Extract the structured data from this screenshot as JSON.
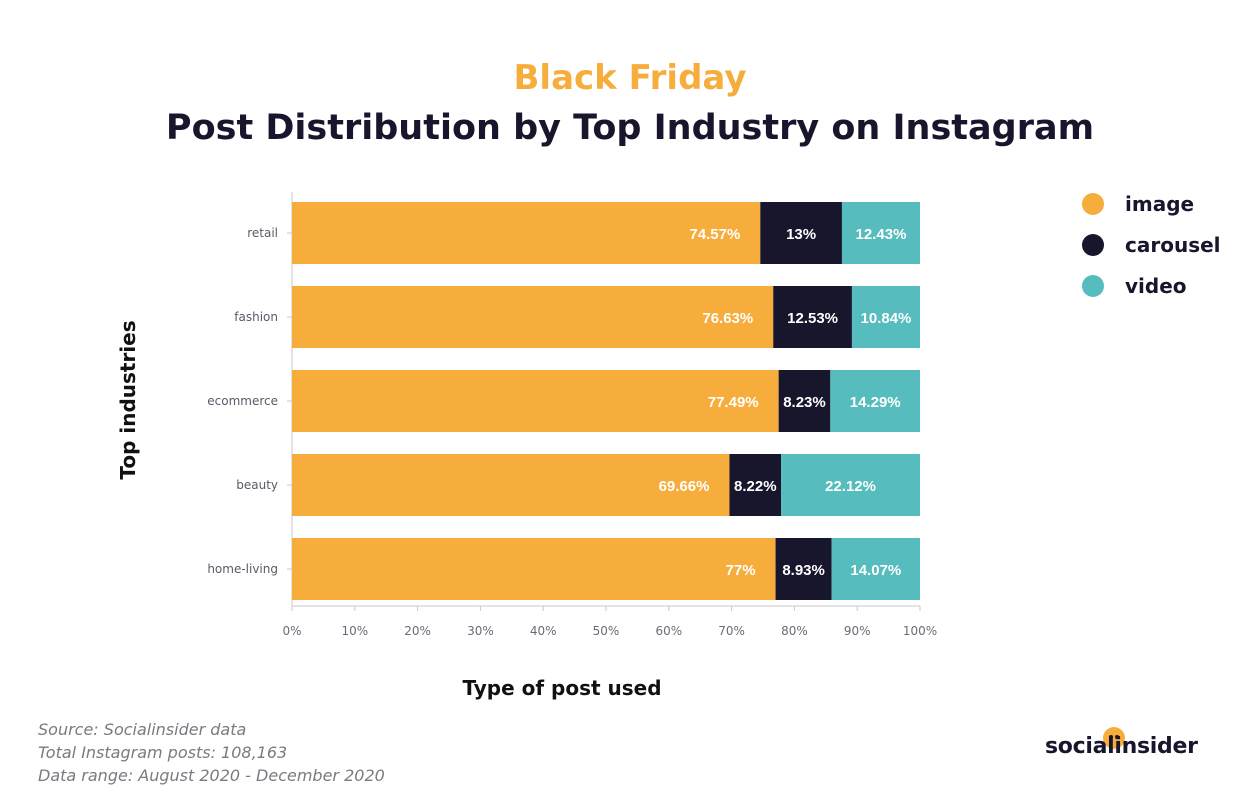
{
  "header": {
    "supertitle": "Black Friday",
    "title": "Post Distribution by Top Industry on Instagram"
  },
  "chart_data": {
    "type": "bar",
    "orientation": "horizontal",
    "stacked": true,
    "categories": [
      "retail",
      "fashion",
      "ecommerce",
      "beauty",
      "home-living"
    ],
    "series": [
      {
        "name": "image",
        "color": "#f6ad3c",
        "values": [
          74.57,
          76.63,
          77.49,
          69.66,
          77
        ],
        "labels": [
          "74.57%",
          "76.63%",
          "77.49%",
          "69.66%",
          "77%"
        ]
      },
      {
        "name": "carousel",
        "color": "#17162c",
        "values": [
          13,
          12.53,
          8.23,
          8.22,
          8.93
        ],
        "labels": [
          "13%",
          "12.53%",
          "8.23%",
          "8.22%",
          "8.93%"
        ]
      },
      {
        "name": "video",
        "color": "#56bcbd",
        "values": [
          12.43,
          10.84,
          14.29,
          22.12,
          14.07
        ],
        "labels": [
          "12.43%",
          "10.84%",
          "14.29%",
          "22.12%",
          "14.07%"
        ]
      }
    ],
    "xlabel": "Type of post used",
    "ylabel": "Top industries",
    "xlim": [
      0,
      100
    ],
    "xticks": [
      "0%",
      "10%",
      "20%",
      "30%",
      "40%",
      "50%",
      "60%",
      "70%",
      "80%",
      "90%",
      "100%"
    ],
    "grid": false,
    "legend_position": "top-right"
  },
  "footnotes": [
    "Source: Socialinsider data",
    "Total Instagram posts: 108,163",
    "Data range: August 2020 - December 2020"
  ],
  "brand": {
    "name": "socialinsider",
    "accent": "#f6ad3c"
  }
}
